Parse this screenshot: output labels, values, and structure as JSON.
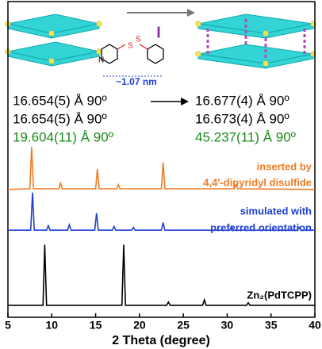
{
  "chart_data": {
    "type": "line",
    "xlabel": "2 Theta (degree)",
    "xlim": [
      5,
      40
    ],
    "xticks": [
      5,
      10,
      15,
      20,
      25,
      30,
      35,
      40
    ],
    "ylim": [
      0,
      100
    ],
    "annotations": {
      "guest": "I",
      "length": "~1.07 nm",
      "before": [
        "16.654(5) Å 90º",
        "16.654(5) Å 90º",
        "19.604(11) Å 90º"
      ],
      "after": [
        "16.677(4) Å 90º",
        "16.673(4) Å 90º",
        "45.237(11) Å 90º"
      ]
    },
    "series": [
      {
        "name": [
          "inserted by",
          "4,4'-dipyridyl disulfide"
        ],
        "color": "#f07a22",
        "x": [
          5,
          7.5,
          7.7,
          7.9,
          10.8,
          11,
          11.2,
          15,
          15.2,
          15.4,
          17.4,
          17.6,
          17.8,
          22.5,
          22.7,
          22.9,
          30.8,
          31,
          31.2,
          40
        ],
        "values": [
          40.5,
          40.7,
          54,
          40.7,
          40.7,
          42.5,
          40.7,
          40.7,
          47,
          40.7,
          40.7,
          42,
          40.7,
          40.7,
          49,
          40.7,
          40.7,
          42,
          40.7,
          40.5
        ]
      },
      {
        "name": [
          "simulated with",
          "preferred orientation"
        ],
        "color": "#1f3fd6",
        "x": [
          5,
          7.6,
          7.8,
          8,
          9.4,
          9.6,
          9.8,
          11.8,
          12,
          12.2,
          14.9,
          15.1,
          15.3,
          16.9,
          17.1,
          17.3,
          19.1,
          19.3,
          19.5,
          22.5,
          22.7,
          22.9,
          30.3,
          30.5,
          30.7,
          38,
          38.2,
          38.4,
          40
        ],
        "values": [
          27.6,
          27.6,
          39.5,
          27.6,
          27.6,
          29,
          27.6,
          27.6,
          29.3,
          27.6,
          27.6,
          33,
          27.6,
          27.6,
          28.8,
          27.6,
          27.6,
          28.5,
          27.6,
          27.6,
          30,
          27.6,
          27.6,
          28.8,
          27.6,
          27.6,
          28.5,
          27.6,
          27.6
        ]
      },
      {
        "name": [
          "Zn₂(PdTCPP)"
        ],
        "color": "#000000",
        "x": [
          5,
          9,
          9.2,
          9.4,
          18,
          18.2,
          18.4,
          23.1,
          23.3,
          23.5,
          27.2,
          27.4,
          27.6,
          32.2,
          32.4,
          32.6,
          40
        ],
        "values": [
          3.8,
          3.8,
          23,
          3.8,
          3.8,
          23,
          3.8,
          3.8,
          4.8,
          3.8,
          3.8,
          5.5,
          3.8,
          3.8,
          4.6,
          3.8,
          3.8
        ]
      }
    ]
  }
}
